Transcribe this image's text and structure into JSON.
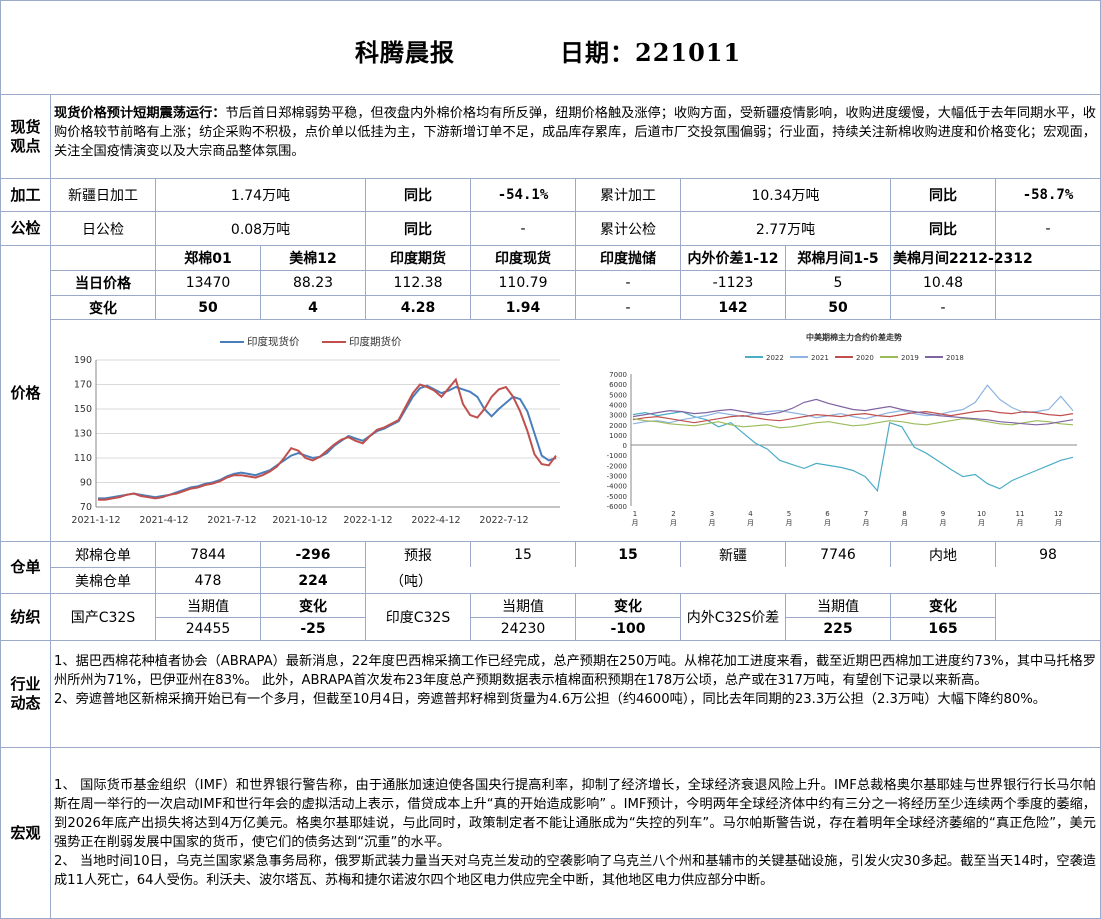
{
  "header": {
    "title": "科腾晨报",
    "date_label": "日期：221011"
  },
  "spot": {
    "label": "现货\n观点",
    "lead": "现货价格预计短期震荡运行：",
    "text": "节后首日郑棉弱势平稳，但夜盘内外棉价格均有所反弹，纽期价格触及涨停；收购方面，受新疆疫情影响，收购进度缓慢，大幅低于去年同期水平，收购价格较节前略有上涨；纺企采购不积极，点价单以低挂为主，下游新增订单不足，成品库存累库，后道市厂交投氛围偏弱；行业面，持续关注新棉收购进度和价格变化；宏观面，关注全国疫情演变以及大宗商品整体氛围。"
  },
  "processing": {
    "label": "加工",
    "daily_label": "新疆日加工",
    "daily_value": "1.74万吨",
    "yoy_label": "同比",
    "yoy_value": "-54.1%",
    "cum_label": "累计加工",
    "cum_value": "10.34万吨",
    "cum_yoy_label": "同比",
    "cum_yoy_value": "-58.7%"
  },
  "inspection": {
    "label": "公检",
    "daily_label": "日公检",
    "daily_value": "0.08万吨",
    "yoy_label": "同比",
    "yoy_value": "-",
    "cum_label": "累计公检",
    "cum_value": "2.77万吨",
    "cum_yoy_label": "同比",
    "cum_yoy_value": "-"
  },
  "price": {
    "label": "价格",
    "headers": [
      "郑棉01",
      "美棉12",
      "印度期货",
      "印度现货",
      "印度抛储",
      "内外价差1-12",
      "郑棉月间1-5",
      "美棉月间2212-2312"
    ],
    "today_label": "当日价格",
    "today": [
      "13470",
      "88.23",
      "112.38",
      "110.79",
      "-",
      "-1123",
      "5",
      "10.48"
    ],
    "change_label": "变化",
    "change": [
      "50",
      "4",
      "4.28",
      "1.94",
      "-",
      "142",
      "50",
      "-"
    ]
  },
  "chart_data": [
    {
      "type": "line",
      "title": "",
      "legend_position": "top",
      "series": [
        {
          "name": "印度现货价",
          "color": "#4a7ebb",
          "values": [
            77,
            77,
            78,
            79,
            80,
            81,
            80,
            79,
            78,
            79,
            80,
            82,
            84,
            86,
            87,
            89,
            90,
            92,
            95,
            97,
            98,
            97,
            96,
            98,
            100,
            104,
            108,
            112,
            114,
            112,
            110,
            111,
            114,
            120,
            124,
            128,
            126,
            124,
            128,
            132,
            134,
            137,
            140,
            150,
            160,
            167,
            169,
            166,
            163,
            165,
            168,
            166,
            164,
            160,
            150,
            144,
            150,
            155,
            160,
            158,
            148,
            130,
            112,
            108,
            110
          ]
        },
        {
          "name": "印度期货价",
          "color": "#c0504d",
          "values": [
            76,
            76,
            77,
            78,
            80,
            81,
            79,
            78,
            77,
            78,
            80,
            81,
            83,
            85,
            86,
            88,
            89,
            91,
            94,
            96,
            96,
            95,
            94,
            96,
            99,
            103,
            110,
            118,
            116,
            110,
            108,
            111,
            116,
            121,
            125,
            127,
            124,
            122,
            128,
            133,
            135,
            138,
            141,
            152,
            163,
            170,
            168,
            165,
            160,
            167,
            174,
            154,
            145,
            143,
            150,
            160,
            166,
            168,
            160,
            148,
            132,
            113,
            105,
            104,
            112
          ]
        }
      ],
      "x_tick_labels": [
        "2021-1-12",
        "2021-4-12",
        "2021-7-12",
        "2021-10-12",
        "2022-1-12",
        "2022-4-12",
        "2022-7-12"
      ],
      "y_ticks": [
        70,
        90,
        110,
        130,
        150,
        170,
        190
      ],
      "ylim": [
        70,
        190
      ],
      "grid": true
    },
    {
      "type": "line",
      "title": "中美期棉主力合约价差走势",
      "legend_position": "top",
      "series": [
        {
          "name": "2022",
          "color": "#4bacc6",
          "values": [
            3000,
            3200,
            2900,
            3100,
            3300,
            2800,
            2500,
            1800,
            2200,
            1200,
            200,
            -400,
            -1500,
            -1900,
            -2300,
            -1800,
            -2000,
            -2200,
            -2500,
            -3100,
            -4500,
            2200,
            1800,
            -200,
            -800,
            -1600,
            -2400,
            -3100,
            -2900,
            -3800,
            -4300,
            -3500,
            -3000,
            -2500,
            -2000,
            -1500,
            -1200
          ]
        },
        {
          "name": "2021",
          "color": "#8db4e2",
          "values": [
            2100,
            2300,
            2400,
            2200,
            2500,
            2700,
            2900,
            3200,
            3000,
            2800,
            3100,
            3300,
            3400,
            3200,
            3000,
            2700,
            2900,
            3100,
            2800,
            2600,
            2900,
            3200,
            3400,
            3100,
            2900,
            3000,
            3300,
            3500,
            4200,
            5900,
            4500,
            3700,
            3200,
            3300,
            3500,
            4800,
            3400
          ]
        },
        {
          "name": "2020",
          "color": "#c0504d",
          "values": [
            2500,
            2700,
            2800,
            2600,
            2400,
            2200,
            2400,
            2600,
            2800,
            2900,
            2700,
            2500,
            2400,
            2600,
            2800,
            3000,
            2900,
            2800,
            3000,
            3100,
            2900,
            2800,
            3000,
            3200,
            3300,
            3100,
            2900,
            3100,
            3300,
            3400,
            3200,
            3100,
            3300,
            3200,
            3000,
            2900,
            3100
          ]
        },
        {
          "name": "2019",
          "color": "#9bbb59",
          "values": [
            2600,
            2400,
            2300,
            2100,
            2000,
            1900,
            2100,
            2300,
            2000,
            1800,
            1900,
            2000,
            1700,
            1800,
            2000,
            2200,
            2300,
            2100,
            1900,
            2000,
            2200,
            2400,
            2300,
            2100,
            2000,
            2200,
            2400,
            2600,
            2500,
            2300,
            2100,
            2000,
            2200,
            2400,
            2300,
            2100,
            2000
          ]
        },
        {
          "name": "2018",
          "color": "#8064a2",
          "values": [
            2800,
            3000,
            3200,
            3400,
            3300,
            3100,
            3200,
            3400,
            3500,
            3300,
            3100,
            3000,
            3200,
            3600,
            4200,
            4500,
            4100,
            3800,
            3500,
            3400,
            3600,
            3800,
            3500,
            3300,
            3100,
            2900,
            2800,
            2700,
            2600,
            2500,
            2300,
            2200,
            2100,
            2000,
            2100,
            2300,
            2500
          ]
        }
      ],
      "x_tick_labels": [
        "1\n月",
        "2\n月",
        "3\n月",
        "4\n月",
        "5\n月",
        "6\n月",
        "7\n月",
        "8\n月",
        "9\n月",
        "10\n月",
        "11\n月",
        "12\n月"
      ],
      "y_ticks": [
        -6000,
        -5000,
        -4000,
        -3000,
        -2000,
        -1000,
        0,
        1000,
        2000,
        3000,
        4000,
        5000,
        6000,
        7000
      ],
      "ylim": [
        -6000,
        7000
      ],
      "grid": false
    }
  ],
  "warehouse": {
    "label": "仓单",
    "zheng_label": "郑棉仓单",
    "zheng_value": "7844",
    "zheng_change": "-296",
    "forecast_label": "预报",
    "forecast_value": "15",
    "forecast_change": "15",
    "xinjiang_label": "新疆",
    "xinjiang_value": "7746",
    "inland_label": "内地",
    "inland_value": "98",
    "us_label": "美棉仓单",
    "us_value": "478",
    "us_change": "224",
    "unit": "（吨）"
  },
  "textile": {
    "label": "纺织",
    "dom_label": "国产C32S",
    "cur_label": "当期值",
    "chg_label": "变化",
    "dom_value": "24455",
    "dom_change": "-25",
    "ind_label": "印度C32S",
    "ind_value": "24230",
    "ind_change": "-100",
    "spread_label": "内外C32S价差",
    "spread_value": "225",
    "spread_change": "165"
  },
  "industry": {
    "label": "行业\n动态",
    "p1": "1、据巴西棉花种植者协会（ABRAPA）最新消息，22年度巴西棉采摘工作已经完成，总产预期在250万吨。从棉花加工进度来看，截至近期巴西棉加工进度约73%，其中马托格罗州所州为71%，巴伊亚州在83%。    此外，ABRAPA首次发布23年度总产预期数据表示植棉面积预期在178万公顷，总产或在317万吨，有望创下记录以来新高。",
    "p2": "2、旁遮普地区新棉采摘开始已有一个多月，但截至10月4日，旁遮普邦籽棉到货量为4.6万公担（约4600吨），同比去年同期的23.3万公担（2.3万吨）大幅下降约80%。"
  },
  "macro": {
    "label": "宏观",
    "p1": "1、  国际货币基金组织（IMF）和世界银行警告称，由于通胀加速迫使各国央行提高利率，抑制了经济增长，全球经济衰退风险上升。IMF总裁格奥尔基耶娃与世界银行行长马尔帕斯在周一举行的一次启动IMF和世行年会的虚拟活动上表示，借贷成本上升“真的开始造成影响”  。IMF预计，今明两年全球经济体中约有三分之一将经历至少连续两个季度的萎缩，到2026年底产出损失将达到4万亿美元。格奥尔基耶娃说，与此同时，政策制定者不能让通胀成为“失控的列车”。马尔帕斯警告说，存在着明年全球经济萎缩的“真正危险”，美元强势正在削弱发展中国家的货币，使它们的债务达到“沉重”的水平。",
    "p2": "2、  当地时间10日，乌克兰国家紧急事务局称，俄罗斯武装力量当天对乌克兰发动的空袭影响了乌克兰八个州和基辅市的关键基础设施，引发火灾30多起。截至当天14时，空袭造成11人死亡，64人受伤。利沃夫、波尔塔瓦、苏梅和捷尔诺波尔四个地区电力供应完全中断，其他地区电力供应部分中断。"
  }
}
